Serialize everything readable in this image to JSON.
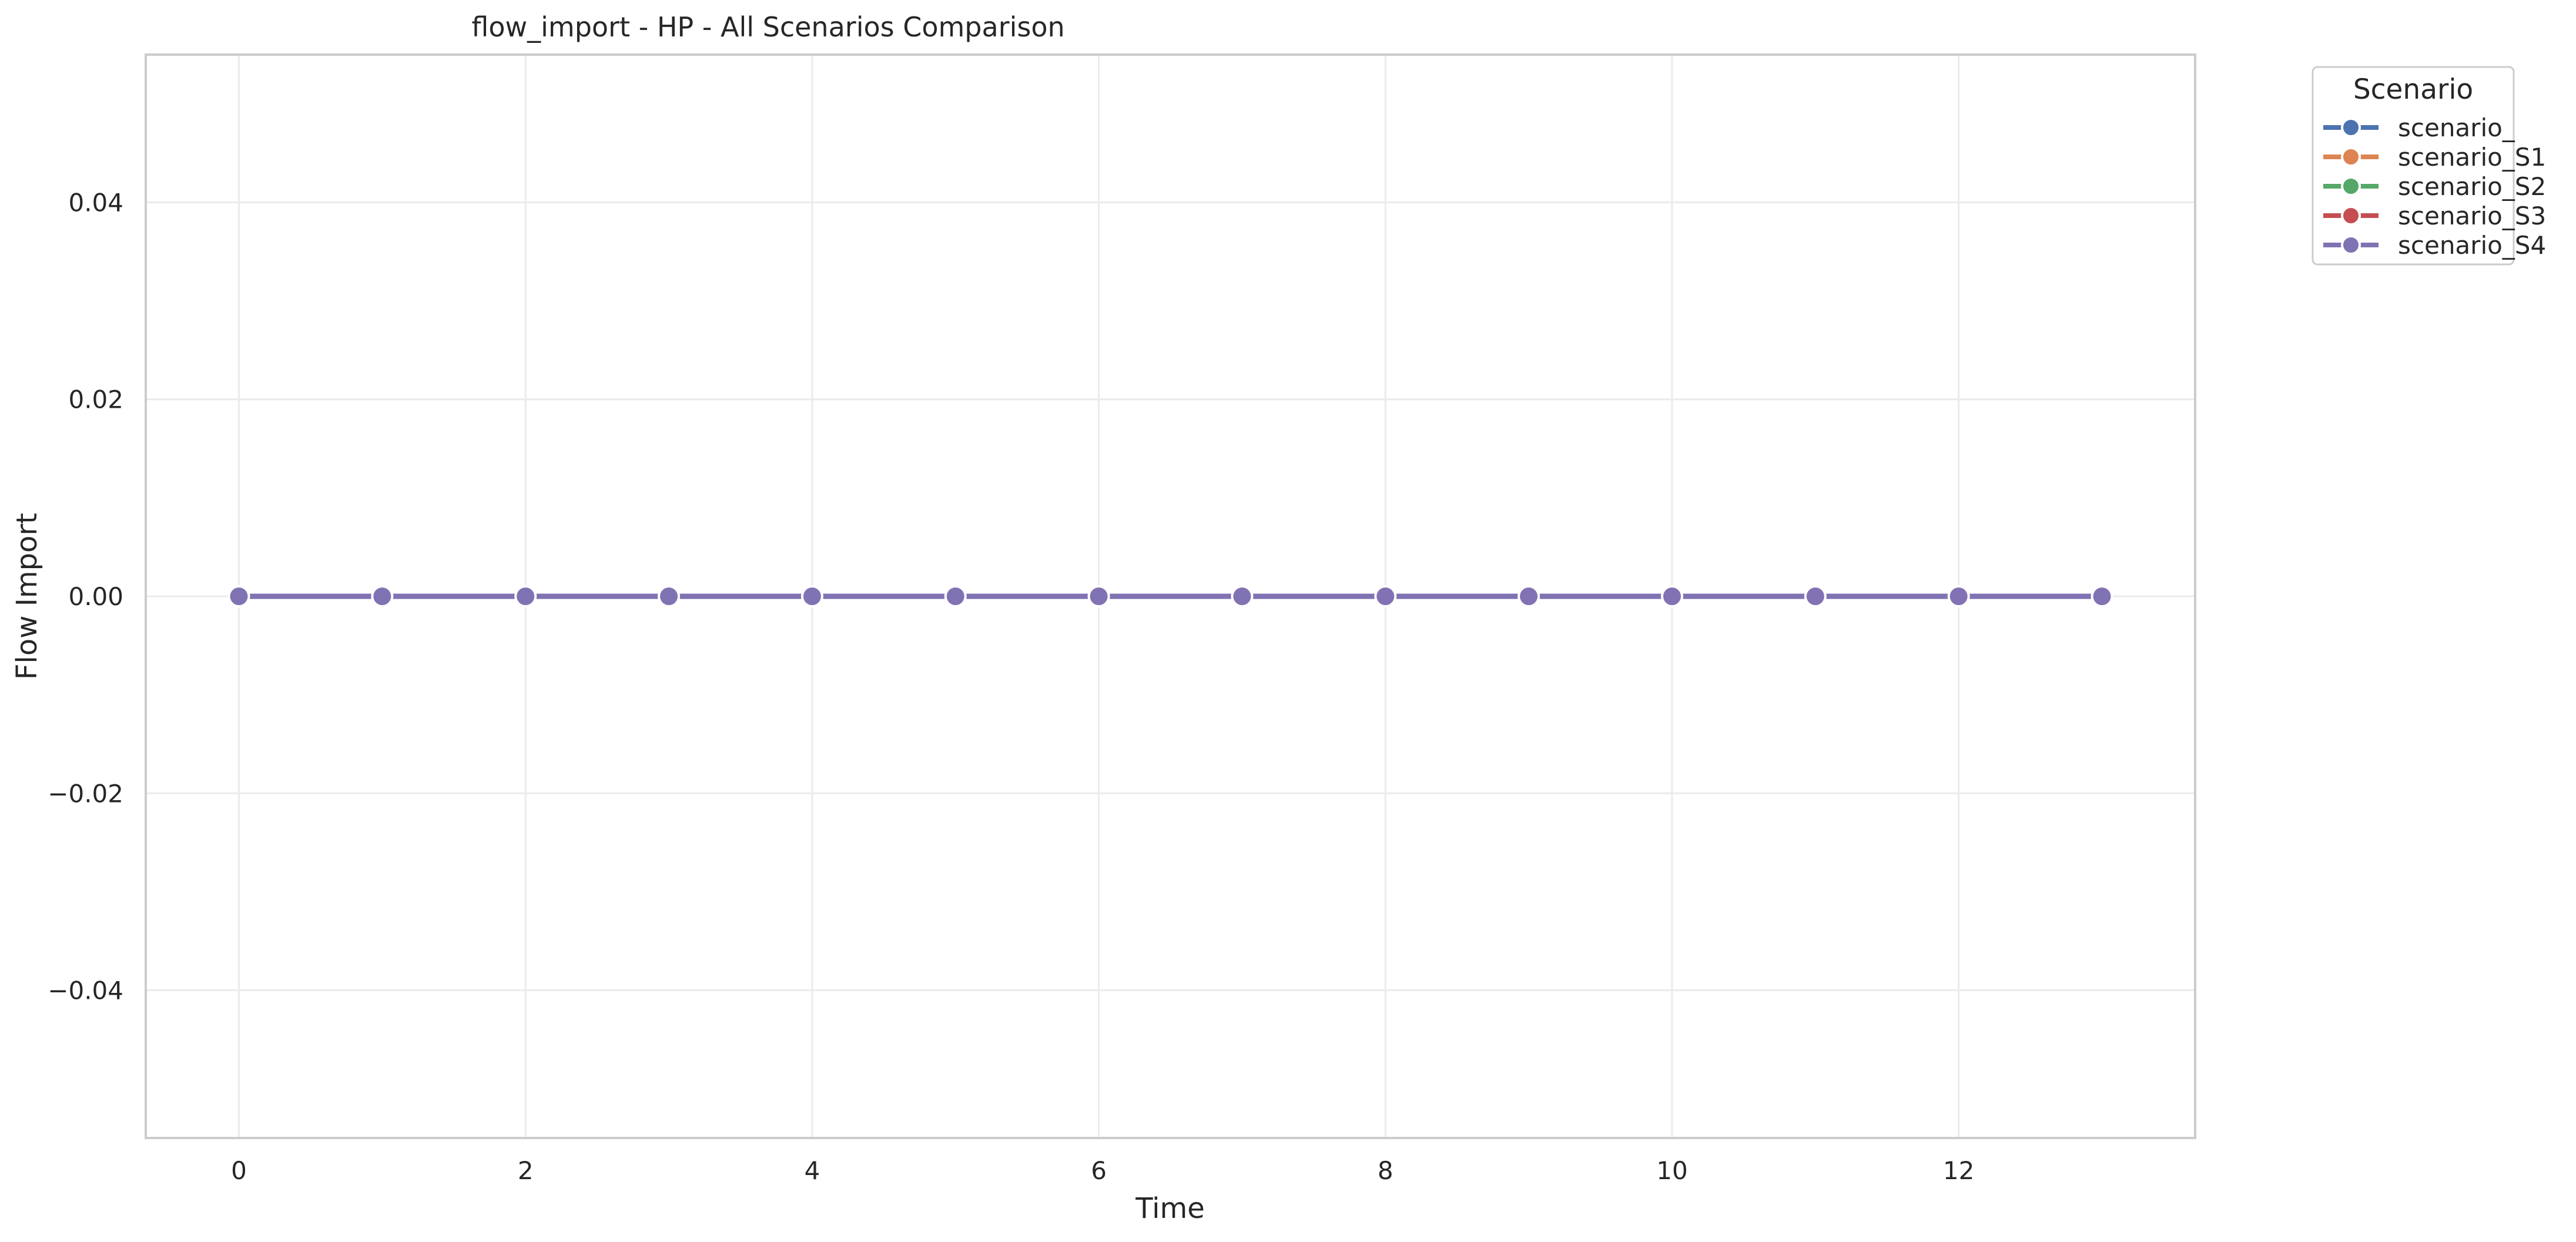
{
  "chart_data": {
    "type": "line",
    "title": "flow_import - HP - All Scenarios Comparison",
    "xlabel": "Time",
    "ylabel": "Flow Import",
    "x": [
      0,
      1,
      2,
      3,
      4,
      5,
      6,
      7,
      8,
      9,
      10,
      11,
      12,
      13
    ],
    "xlim": [
      -0.65,
      13.65
    ],
    "ylim": [
      -0.055,
      0.055
    ],
    "xticks": [
      0,
      2,
      4,
      6,
      8,
      10,
      12
    ],
    "xtick_labels": [
      "0",
      "2",
      "4",
      "6",
      "8",
      "10",
      "12"
    ],
    "yticks": [
      -0.04,
      -0.02,
      0.0,
      0.02,
      0.04
    ],
    "ytick_labels": [
      "−0.04",
      "−0.02",
      "0.00",
      "0.02",
      "0.04"
    ],
    "grid": true,
    "markers": true,
    "legend": {
      "title": "Scenario",
      "placement": "outside upper-right"
    },
    "series": [
      {
        "name": "scenario_",
        "color": "#4c72b0",
        "values": [
          0,
          0,
          0,
          0,
          0,
          0,
          0,
          0,
          0,
          0,
          0,
          0,
          0,
          0
        ]
      },
      {
        "name": "scenario_S1",
        "color": "#dd8452",
        "values": [
          0,
          0,
          0,
          0,
          0,
          0,
          0,
          0,
          0,
          0,
          0,
          0,
          0,
          0
        ]
      },
      {
        "name": "scenario_S2",
        "color": "#55a868",
        "values": [
          0,
          0,
          0,
          0,
          0,
          0,
          0,
          0,
          0,
          0,
          0,
          0,
          0,
          0
        ]
      },
      {
        "name": "scenario_S3",
        "color": "#c44e52",
        "values": [
          0,
          0,
          0,
          0,
          0,
          0,
          0,
          0,
          0,
          0,
          0,
          0,
          0,
          0
        ]
      },
      {
        "name": "scenario_S4",
        "color": "#8172b3",
        "values": [
          0,
          0,
          0,
          0,
          0,
          0,
          0,
          0,
          0,
          0,
          0,
          0,
          0,
          0
        ]
      }
    ]
  }
}
